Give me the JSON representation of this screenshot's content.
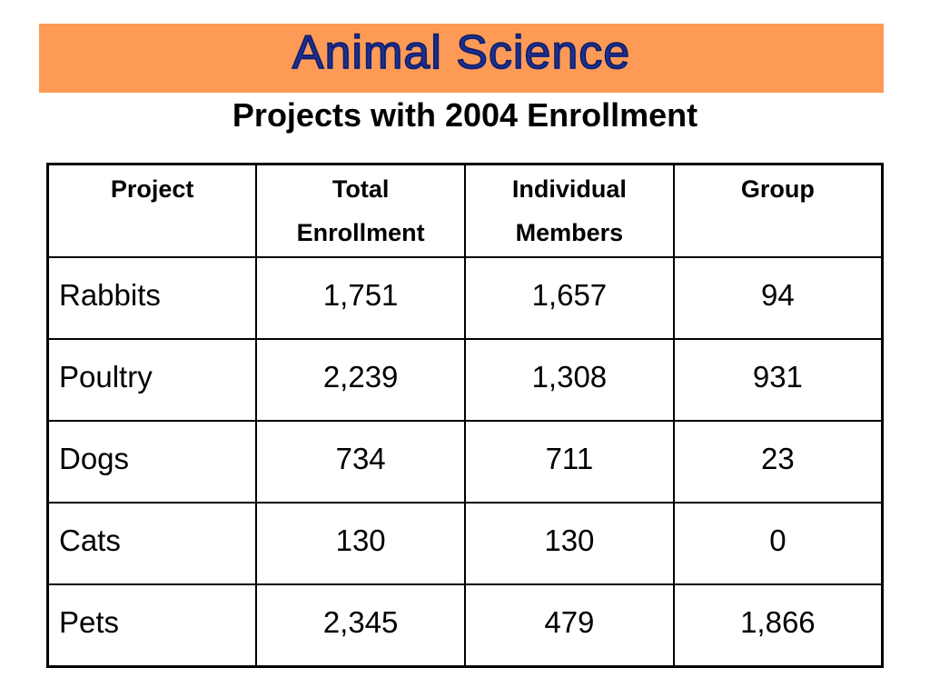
{
  "banner": {
    "title": "Animal Science",
    "bg_color": "#fd9a55",
    "text_color": "#1e2f8c"
  },
  "subtitle": "Projects with 2004 Enrollment",
  "table": {
    "headers": [
      [
        "Project"
      ],
      [
        "Total",
        "Enrollment"
      ],
      [
        "Individual",
        "Members"
      ],
      [
        "Group"
      ]
    ],
    "rows": [
      [
        "Rabbits",
        "1,751",
        "1,657",
        "94"
      ],
      [
        "Poultry",
        "2,239",
        "1,308",
        "931"
      ],
      [
        "Dogs",
        "734",
        "711",
        "23"
      ],
      [
        "Cats",
        "130",
        "130",
        "0"
      ],
      [
        "Pets",
        "2,345",
        "479",
        "1,866"
      ]
    ]
  }
}
